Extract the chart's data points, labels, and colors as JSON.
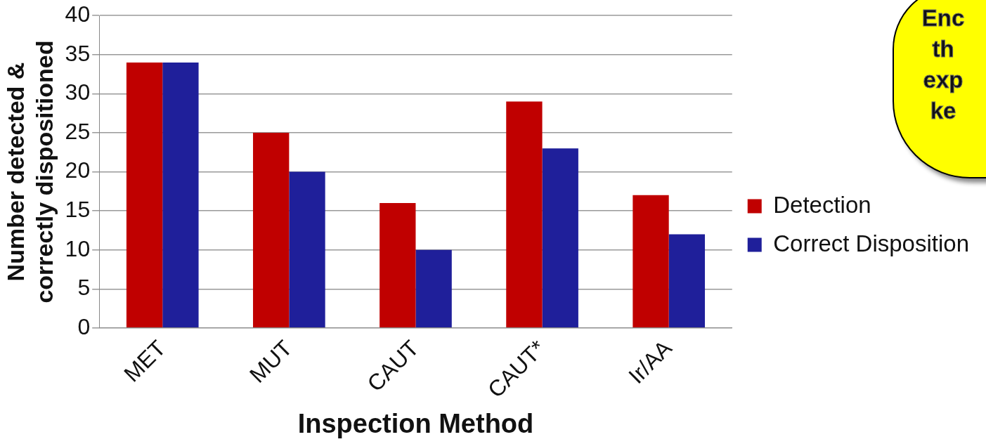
{
  "chart_data": {
    "type": "bar",
    "xlabel": "Inspection Method",
    "ylabel": "Number detected &\ncorrectly dispositioned",
    "categories": [
      "MET",
      "MUT",
      "CAUT",
      "CAUT*",
      "Ir/AA"
    ],
    "series": [
      {
        "name": "Detection",
        "color": "#c00000",
        "values": [
          34,
          25,
          16,
          29,
          17
        ]
      },
      {
        "name": "Correct Disposition",
        "color": "#1f1f9a",
        "values": [
          34,
          20,
          10,
          23,
          12
        ]
      }
    ],
    "ylim": [
      0,
      40
    ],
    "yticks": [
      0,
      5,
      10,
      15,
      20,
      25,
      30,
      35,
      40
    ],
    "grid": "y",
    "legend": "right",
    "annotations": [
      "Enc\nth\nexp\nke"
    ]
  }
}
